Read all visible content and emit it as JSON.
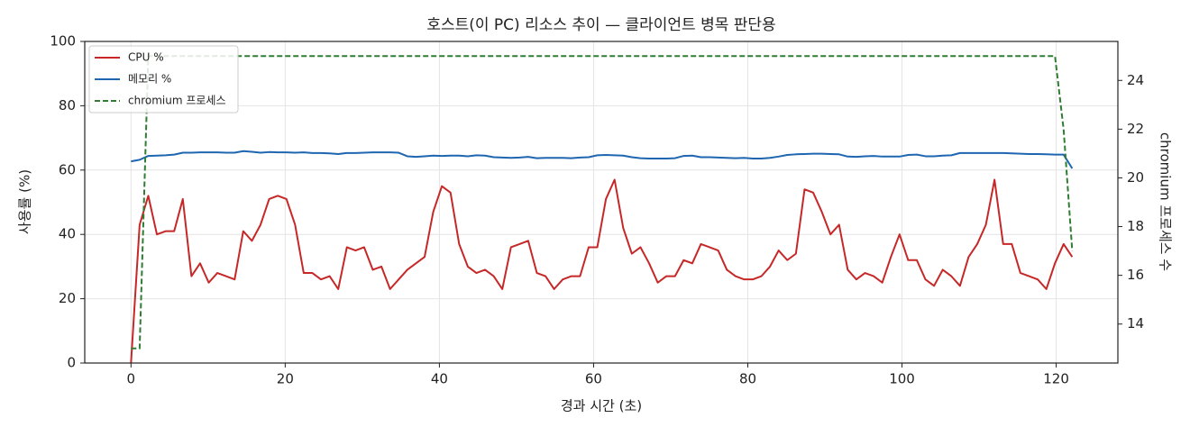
{
  "chart_data": {
    "type": "line",
    "title": "호스트(이 PC) 리소스 추이 — 클라이언트 병목 판단용",
    "x_label": "경과 시간 (초)",
    "y_label": "사용률 (%)",
    "y2_label": "chromium 프로세스 수",
    "x": [
      0,
      1.12,
      2.24,
      3.36,
      4.48,
      5.6,
      6.72,
      7.84,
      8.96,
      10.08,
      11.2,
      12.32,
      13.44,
      14.56,
      15.68,
      16.8,
      17.92,
      19.04,
      20.16,
      21.28,
      22.4,
      23.52,
      24.64,
      25.76,
      26.88,
      28,
      29.12,
      30.24,
      31.36,
      32.48,
      33.6,
      34.72,
      35.84,
      36.96,
      38.08,
      39.2,
      40.32,
      41.44,
      42.56,
      43.68,
      44.8,
      45.92,
      47.04,
      48.16,
      49.28,
      50.4,
      51.52,
      52.64,
      53.76,
      54.88,
      56,
      57.12,
      58.24,
      59.36,
      60.48,
      61.6,
      62.72,
      63.84,
      64.96,
      66.08,
      67.2,
      68.32,
      69.44,
      70.56,
      71.68,
      72.8,
      73.92,
      75.04,
      76.16,
      77.28,
      78.4,
      79.52,
      80.64,
      81.76,
      82.88,
      84,
      85.12,
      86.24,
      87.36,
      88.48,
      89.6,
      90.72,
      91.84,
      92.96,
      94.08,
      95.2,
      96.32,
      97.44,
      98.56,
      99.68,
      100.8,
      101.92,
      103.04,
      104.16,
      105.28,
      106.4,
      107.52,
      108.64,
      109.76,
      110.88,
      112,
      113.12,
      114.24,
      115.36,
      116.48,
      117.6,
      118.72,
      119.84,
      120.96,
      122.08
    ],
    "series": [
      {
        "name": "CPU %",
        "color": "#c62828",
        "values": [
          0,
          43,
          52,
          40,
          41,
          41,
          51,
          27,
          31,
          25,
          28,
          27,
          26,
          41,
          38,
          43,
          51,
          52,
          51,
          43,
          28,
          28,
          26,
          27,
          23,
          36,
          35,
          36,
          29,
          30,
          23,
          26,
          29,
          31,
          33,
          47,
          55,
          53,
          37,
          30,
          28,
          29,
          27,
          23,
          36,
          37,
          38,
          28,
          27,
          23,
          26,
          27,
          27,
          36,
          36,
          51,
          57,
          42,
          34,
          36,
          31,
          25,
          27,
          27,
          32,
          31,
          37,
          36,
          35,
          29,
          27,
          26,
          26,
          27,
          30,
          35,
          32,
          34,
          54,
          53,
          47,
          40,
          43,
          29,
          26,
          28,
          27,
          25,
          33,
          40,
          32,
          32,
          26,
          24,
          29,
          27,
          24,
          33,
          37,
          43,
          57,
          37,
          37,
          28,
          27,
          26,
          23,
          31,
          37,
          33
        ]
      },
      {
        "name": "메모리 %",
        "color": "#1f66b0",
        "values": [
          62.7,
          63.2,
          64.4,
          64.5,
          64.6,
          64.8,
          65.4,
          65.4,
          65.5,
          65.5,
          65.5,
          65.4,
          65.4,
          65.9,
          65.7,
          65.4,
          65.6,
          65.5,
          65.5,
          65.4,
          65.5,
          65.3,
          65.3,
          65.2,
          65.0,
          65.3,
          65.3,
          65.4,
          65.5,
          65.5,
          65.5,
          65.4,
          64.3,
          64.1,
          64.3,
          64.5,
          64.4,
          64.5,
          64.5,
          64.3,
          64.6,
          64.5,
          64.0,
          63.9,
          63.8,
          63.9,
          64.1,
          63.7,
          63.8,
          63.8,
          63.8,
          63.7,
          63.9,
          64.0,
          64.6,
          64.7,
          64.6,
          64.5,
          64.0,
          63.7,
          63.6,
          63.6,
          63.6,
          63.7,
          64.4,
          64.5,
          64.0,
          64.0,
          63.9,
          63.8,
          63.7,
          63.8,
          63.6,
          63.6,
          63.8,
          64.2,
          64.7,
          64.9,
          65.0,
          65.1,
          65.1,
          65.0,
          64.9,
          64.2,
          64.1,
          64.3,
          64.4,
          64.2,
          64.2,
          64.2,
          64.7,
          64.8,
          64.3,
          64.3,
          64.5,
          64.6,
          65.3,
          65.3,
          65.3,
          65.3,
          65.3,
          65.3,
          65.2,
          65.1,
          65.0,
          65.0,
          64.9,
          64.8,
          64.8,
          60.5
        ]
      },
      {
        "name": "chromium 프로세스",
        "color": "#2e7d32",
        "dashed": true,
        "axis": "y2",
        "values": [
          13,
          13,
          25,
          25,
          25,
          25,
          25,
          25,
          25,
          25,
          25,
          25,
          25,
          25,
          25,
          25,
          25,
          25,
          25,
          25,
          25,
          25,
          25,
          25,
          25,
          25,
          25,
          25,
          25,
          25,
          25,
          25,
          25,
          25,
          25,
          25,
          25,
          25,
          25,
          25,
          25,
          25,
          25,
          25,
          25,
          25,
          25,
          25,
          25,
          25,
          25,
          25,
          25,
          25,
          25,
          25,
          25,
          25,
          25,
          25,
          25,
          25,
          25,
          25,
          25,
          25,
          25,
          25,
          25,
          25,
          25,
          25,
          25,
          25,
          25,
          25,
          25,
          25,
          25,
          25,
          25,
          25,
          25,
          25,
          25,
          25,
          25,
          25,
          25,
          25,
          25,
          25,
          25,
          25,
          25,
          25,
          25,
          25,
          25,
          25,
          25,
          25,
          25,
          25,
          25,
          25,
          25,
          25,
          22,
          17
        ]
      }
    ],
    "xlim": [
      -6,
      128
    ],
    "ylim": [
      0,
      100
    ],
    "y2lim": [
      12.4,
      25.6
    ],
    "xticks": [
      0,
      20,
      40,
      60,
      80,
      100,
      120
    ],
    "yticks": [
      0,
      20,
      40,
      60,
      80,
      100
    ],
    "y2ticks": [
      14,
      16,
      18,
      20,
      22,
      24
    ],
    "grid": true,
    "legend": "upper left"
  }
}
